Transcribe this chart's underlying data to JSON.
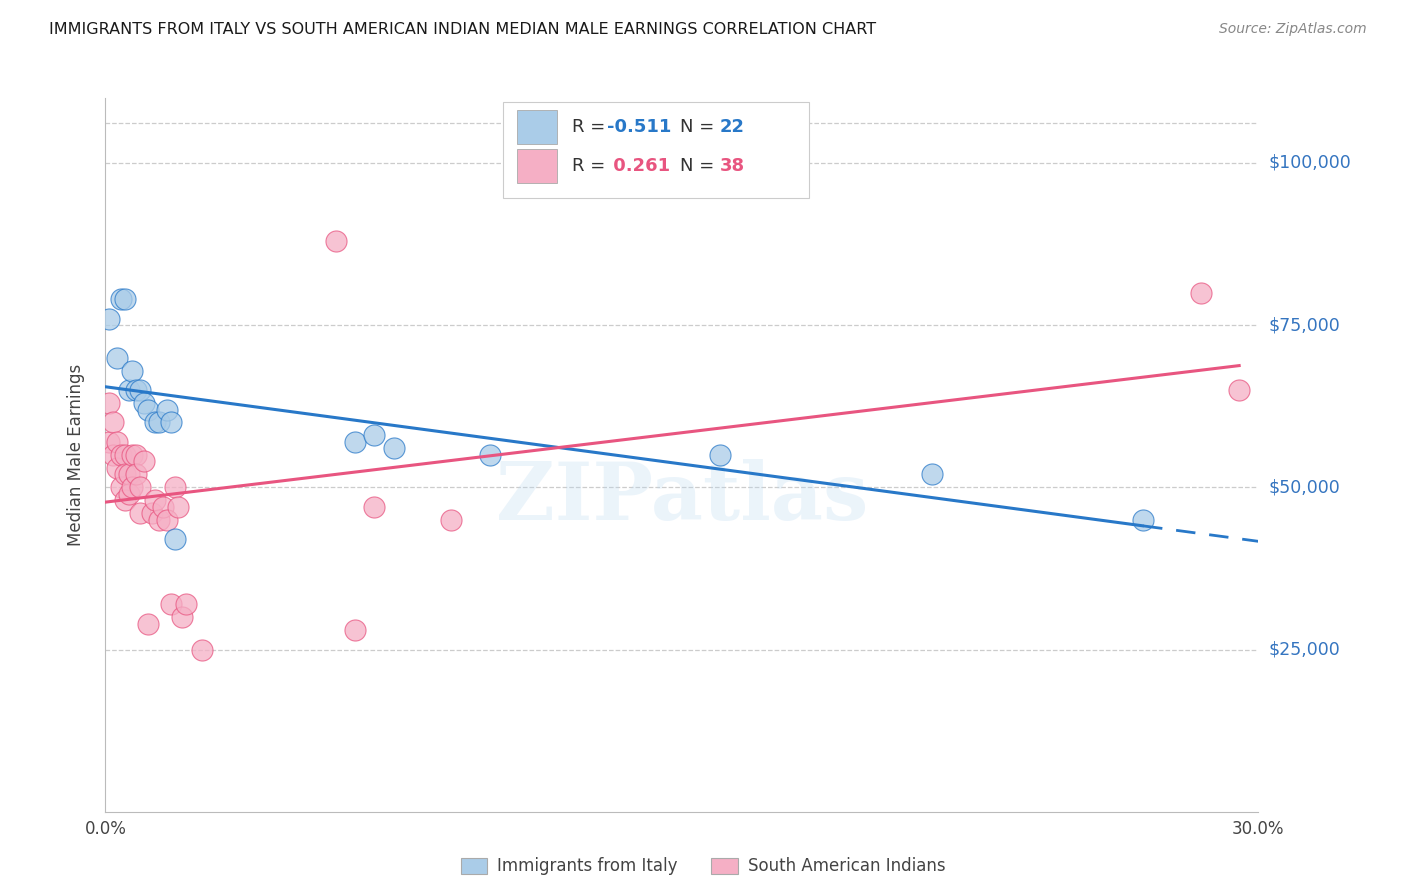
{
  "title": "IMMIGRANTS FROM ITALY VS SOUTH AMERICAN INDIAN MEDIAN MALE EARNINGS CORRELATION CHART",
  "source": "Source: ZipAtlas.com",
  "ylabel": "Median Male Earnings",
  "ytick_values": [
    25000,
    50000,
    75000,
    100000
  ],
  "ytick_labels": [
    "$25,000",
    "$50,000",
    "$75,000",
    "$100,000"
  ],
  "watermark": "ZIPatlas",
  "blue_scatter_color": "#aacce8",
  "pink_scatter_color": "#f5afc5",
  "blue_line_color": "#2878c8",
  "pink_line_color": "#e85580",
  "right_label_color": "#3575c0",
  "italy_points_x": [
    0.001,
    0.003,
    0.004,
    0.005,
    0.006,
    0.007,
    0.008,
    0.009,
    0.01,
    0.011,
    0.013,
    0.014,
    0.016,
    0.017,
    0.018,
    0.065,
    0.07,
    0.075,
    0.1,
    0.16,
    0.215,
    0.27
  ],
  "italy_points_y": [
    76000,
    70000,
    79000,
    79000,
    65000,
    68000,
    65000,
    65000,
    63000,
    62000,
    60000,
    60000,
    62000,
    60000,
    42000,
    57000,
    58000,
    56000,
    55000,
    55000,
    52000,
    45000
  ],
  "sa_indian_points_x": [
    0.001,
    0.001,
    0.002,
    0.002,
    0.003,
    0.003,
    0.004,
    0.004,
    0.005,
    0.005,
    0.005,
    0.006,
    0.006,
    0.007,
    0.007,
    0.008,
    0.008,
    0.009,
    0.009,
    0.01,
    0.011,
    0.012,
    0.013,
    0.014,
    0.015,
    0.016,
    0.017,
    0.018,
    0.019,
    0.02,
    0.021,
    0.025,
    0.06,
    0.065,
    0.07,
    0.09,
    0.285,
    0.295
  ],
  "sa_indian_points_y": [
    63000,
    57000,
    60000,
    55000,
    57000,
    53000,
    55000,
    50000,
    55000,
    52000,
    48000,
    52000,
    49000,
    55000,
    50000,
    55000,
    52000,
    50000,
    46000,
    54000,
    29000,
    46000,
    48000,
    45000,
    47000,
    45000,
    32000,
    50000,
    47000,
    30000,
    32000,
    25000,
    88000,
    28000,
    47000,
    45000,
    80000,
    65000
  ],
  "italy_R": -0.511,
  "italy_N": 22,
  "sa_R": 0.261,
  "sa_N": 38,
  "xmin": 0.0,
  "xmax": 0.3,
  "ymin": 0,
  "ymax": 110000,
  "legend_label1": "Immigrants from Italy",
  "legend_label2": "South American Indians"
}
